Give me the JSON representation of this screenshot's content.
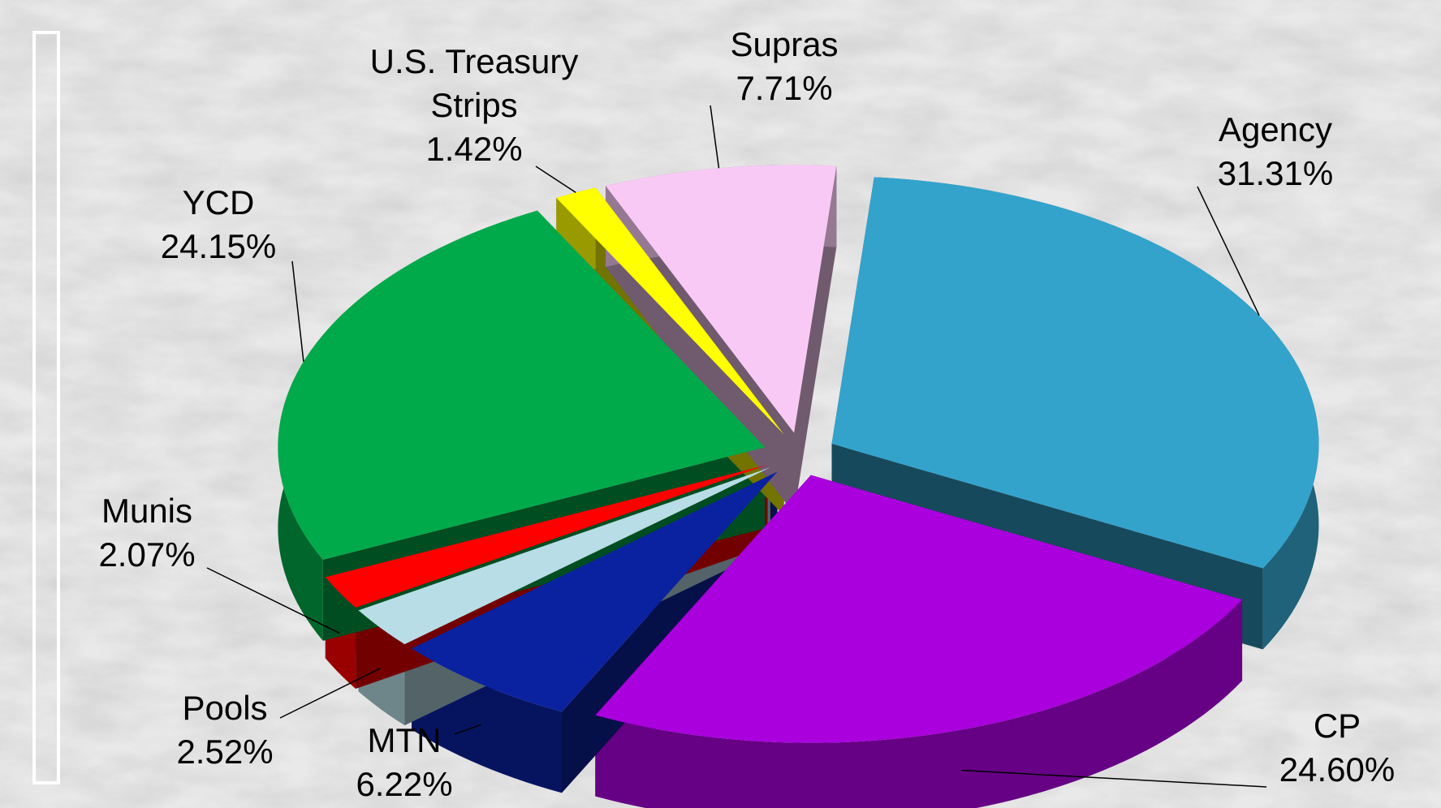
{
  "chart_data": {
    "type": "pie",
    "categories": [
      "Agency",
      "CP",
      "MTN",
      "Pools",
      "Munis",
      "YCD",
      "U.S. Treasury Strips",
      "Supras"
    ],
    "values": [
      31.31,
      24.6,
      6.22,
      2.52,
      2.07,
      24.15,
      1.42,
      7.71
    ],
    "value_labels": [
      "31.31%",
      "24.60%",
      "6.22%",
      "2.52%",
      "2.07%",
      "24.15%",
      "1.42%",
      "7.71%"
    ],
    "colors": [
      "#33a3cc",
      "#aa00dd",
      "#0a22a0",
      "#b8dde6",
      "#ff0000",
      "#00aa4a",
      "#ffff00",
      "#f9c9f5"
    ]
  }
}
